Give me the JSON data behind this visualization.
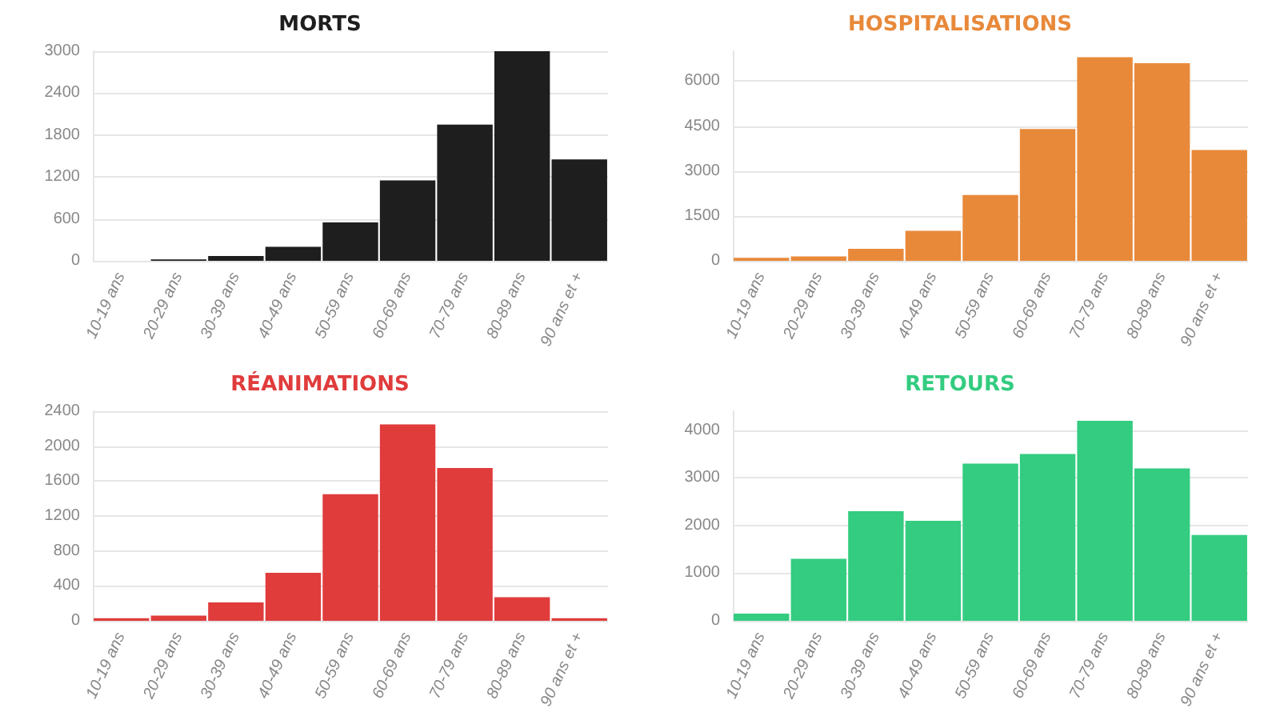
{
  "chart_data": [
    {
      "type": "bar",
      "title": "MORTS",
      "categories": [
        "10-19 ans",
        "20-29 ans",
        "30-39 ans",
        "40-49 ans",
        "50-59 ans",
        "60-69 ans",
        "70-79 ans",
        "80-89 ans",
        "90 ans et +"
      ],
      "values": [
        0,
        20,
        70,
        200,
        550,
        1150,
        1950,
        3000,
        1450
      ],
      "color": "#1e1e1e",
      "ylim": [
        0,
        3000
      ],
      "yticks": [
        0,
        600,
        1200,
        1800,
        2400,
        3000
      ],
      "grid": "y"
    },
    {
      "type": "bar",
      "title": "HOSPITALISATIONS",
      "categories": [
        "10-19 ans",
        "20-29 ans",
        "30-39 ans",
        "40-49 ans",
        "50-59 ans",
        "60-69 ans",
        "70-79 ans",
        "80-89 ans",
        "90 ans et +"
      ],
      "values": [
        100,
        150,
        400,
        1000,
        2200,
        4400,
        6800,
        6600,
        3700
      ],
      "color": "#e8893a",
      "ylim": [
        0,
        7000
      ],
      "yticks": [
        0,
        1500,
        3000,
        4500,
        6000
      ],
      "grid": "y"
    },
    {
      "type": "bar",
      "title": "RÉANIMATIONS",
      "categories": [
        "10-19 ans",
        "20-29 ans",
        "30-39 ans",
        "40-49 ans",
        "50-59 ans",
        "60-69 ans",
        "70-79 ans",
        "80-89 ans",
        "90 ans et +"
      ],
      "values": [
        30,
        60,
        210,
        550,
        1450,
        2250,
        1750,
        270,
        30
      ],
      "color": "#e03c3c",
      "ylim": [
        0,
        2400
      ],
      "yticks": [
        0,
        400,
        800,
        1200,
        1600,
        2000,
        2400
      ],
      "grid": "y"
    },
    {
      "type": "bar",
      "title": "RETOURS",
      "categories": [
        "10-19 ans",
        "20-29 ans",
        "30-39 ans",
        "40-49 ans",
        "50-59 ans",
        "60-69 ans",
        "70-79 ans",
        "80-89 ans",
        "90 ans et +"
      ],
      "values": [
        150,
        1300,
        2300,
        2100,
        3300,
        3500,
        4200,
        3200,
        1800
      ],
      "color": "#33cc80",
      "ylim": [
        0,
        4400
      ],
      "yticks": [
        0,
        1000,
        2000,
        3000,
        4000
      ],
      "grid": "y"
    }
  ]
}
